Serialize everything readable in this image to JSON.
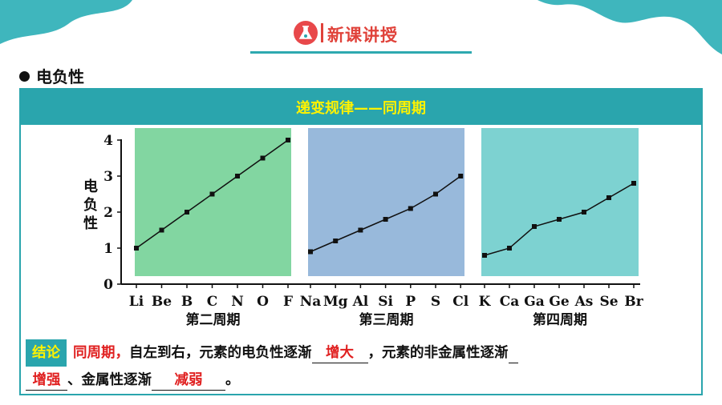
{
  "header": {
    "title": "新课讲授"
  },
  "section": {
    "title": "电负性"
  },
  "panel": {
    "band_title": "递变规律——同周期",
    "ylabel": "电负性"
  },
  "chart_data": {
    "type": "line",
    "ylabel": "电负性",
    "ylim": [
      0,
      4
    ],
    "yticks": [
      "0",
      "1",
      "2",
      "3",
      "4"
    ],
    "series": [
      {
        "name": "第二周期",
        "color": "#82d6a1",
        "elements": [
          "Li",
          "Be",
          "B",
          "C",
          "N",
          "O",
          "F"
        ],
        "values": [
          1.0,
          1.5,
          2.0,
          2.5,
          3.0,
          3.5,
          4.0
        ]
      },
      {
        "name": "第三周期",
        "color": "#98b9db",
        "elements": [
          "Na",
          "Mg",
          "Al",
          "Si",
          "P",
          "S",
          "Cl"
        ],
        "values": [
          0.9,
          1.2,
          1.5,
          1.8,
          2.1,
          2.5,
          3.0
        ]
      },
      {
        "name": "第四周期",
        "color": "#7dd2d1",
        "elements": [
          "K",
          "Ca",
          "Ga",
          "Ge",
          "As",
          "Se",
          "Br"
        ],
        "values": [
          0.8,
          1.0,
          1.6,
          1.8,
          2.0,
          2.4,
          2.8
        ]
      }
    ]
  },
  "conclusion": {
    "tag": "结论",
    "lead": "同周期，",
    "text1": "自左到右，元素的电负性逐渐",
    "answer1": "增大",
    "text2": "，元素的非金属性逐渐",
    "answer2": "增强",
    "text3": "、金属性逐渐",
    "answer3": "减弱",
    "end": "。"
  }
}
